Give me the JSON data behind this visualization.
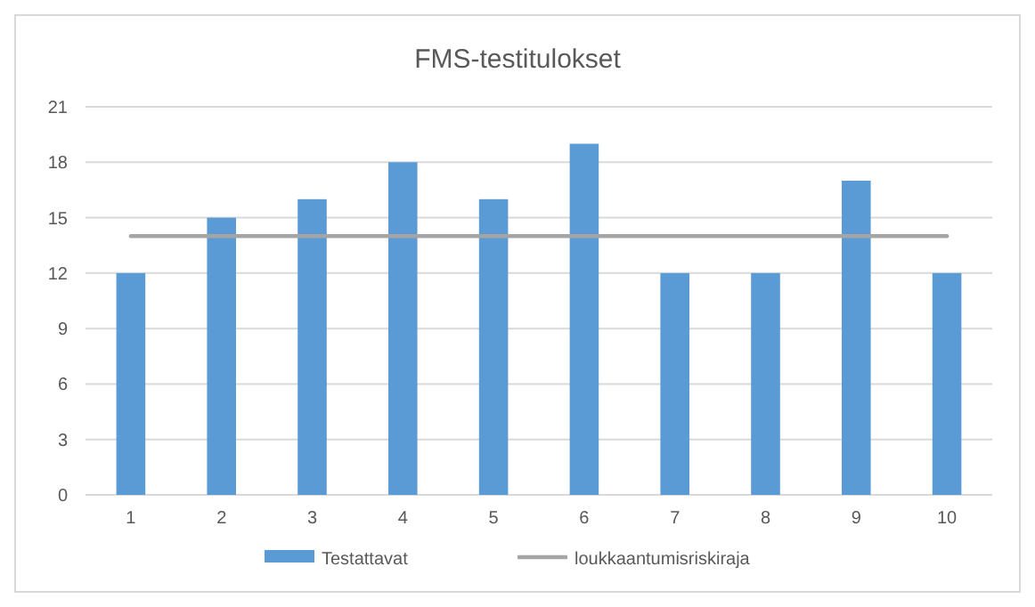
{
  "chart_data": {
    "type": "bar",
    "title": "FMS-testitulokset",
    "categories": [
      "1",
      "2",
      "3",
      "4",
      "5",
      "6",
      "7",
      "8",
      "9",
      "10"
    ],
    "series": [
      {
        "name": "Testattavat",
        "color": "#5b9bd5",
        "values": [
          12,
          15,
          16,
          18,
          16,
          19,
          12,
          12,
          17,
          12
        ]
      },
      {
        "name": "loukkaantumisriskiraja",
        "type": "line",
        "color": "#a5a5a5",
        "values": [
          14,
          14,
          14,
          14,
          14,
          14,
          14,
          14,
          14,
          14
        ]
      }
    ],
    "ylim": [
      0,
      21
    ],
    "yticks": [
      0,
      3,
      6,
      9,
      12,
      15,
      18,
      21
    ],
    "grid": "y",
    "legend": "bottom"
  }
}
